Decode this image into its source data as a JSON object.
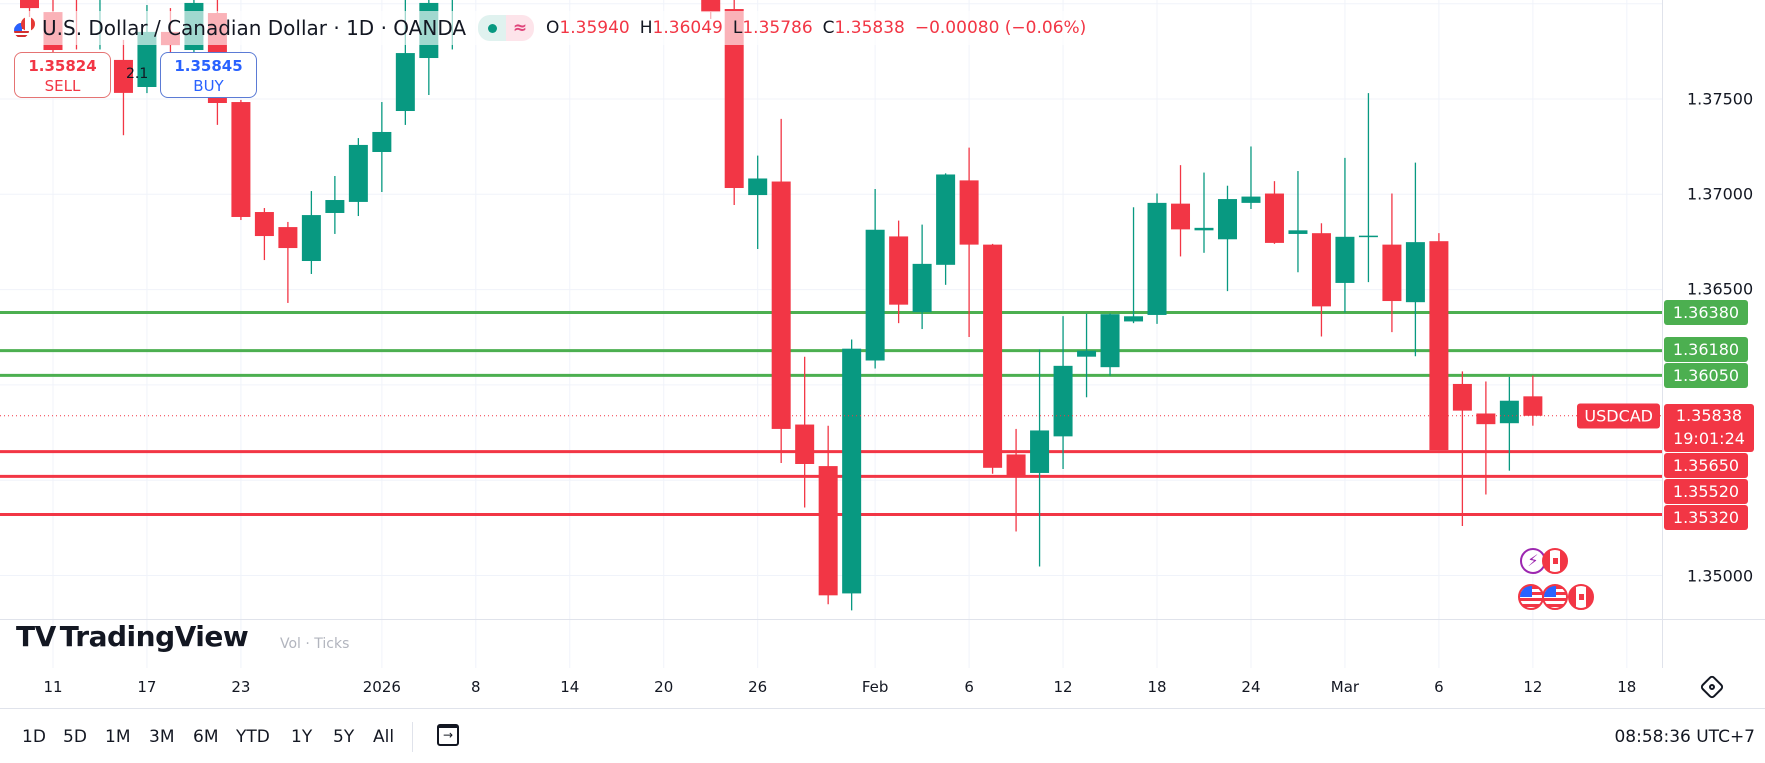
{
  "header": {
    "title": "U.S. Dollar / Canadian Dollar · 1D · OANDA",
    "market_status_icon": "green-dot",
    "indicator_icon": "approx-wave",
    "ohlc": {
      "o_label": "O",
      "o": "1.35940",
      "h_label": "H",
      "h": "1.36049",
      "l_label": "L",
      "l": "1.35786",
      "c_label": "C",
      "c": "1.35838",
      "change": "−0.00080 (−0.06%)"
    }
  },
  "trade": {
    "sell_price": "1.35824",
    "sell_label": "SELL",
    "spread": "2.1",
    "buy_price": "1.35845",
    "buy_label": "BUY"
  },
  "price_axis": {
    "labels": [
      "1.37500",
      "1.37000",
      "1.36500",
      "1.35000"
    ]
  },
  "levels": {
    "resistance": [
      "1.36380",
      "1.36180",
      "1.36050"
    ],
    "support": [
      "1.35650",
      "1.35520",
      "1.35320"
    ]
  },
  "current": {
    "symbol": "USDCAD",
    "price": "1.35838",
    "countdown": "19:01:24"
  },
  "colors": {
    "up": "#089981",
    "down": "#F23645",
    "resistance": "#4CAF50",
    "support": "#F23645"
  },
  "chart_data": {
    "type": "candlestick",
    "ylim": [
      1.3475,
      1.3805
    ],
    "grid": true,
    "candles": [
      [
        "2025-12-10",
        1.3818,
        1.3823,
        1.3793,
        1.37977
      ],
      [
        "2025-12-11",
        1.37956,
        1.38046,
        1.37731,
        1.37757
      ],
      [
        "2025-12-12",
        1.3815,
        1.3825,
        1.3776,
        1.3808
      ],
      [
        "2025-12-15",
        1.3808,
        1.3822,
        1.3776,
        1.3815
      ],
      [
        "2025-12-16",
        1.37705,
        1.3781,
        1.3731,
        1.37532
      ],
      [
        "2025-12-17",
        1.37563,
        1.37993,
        1.37531,
        1.37852
      ],
      [
        "2025-12-18",
        1.37852,
        1.37977,
        1.37741,
        1.37783
      ],
      [
        "2025-12-19",
        1.37757,
        1.38072,
        1.37731,
        1.38004
      ],
      [
        "2025-12-22",
        1.37951,
        1.38046,
        1.37364,
        1.37479
      ],
      [
        "2025-12-23",
        1.37484,
        1.37495,
        1.36865,
        1.36881
      ],
      [
        "2025-12-24",
        1.36907,
        1.36928,
        1.36655,
        1.36781
      ],
      [
        "2025-12-26",
        1.36828,
        1.36855,
        1.3643,
        1.36718
      ],
      [
        "2025-12-29",
        1.3665,
        1.37017,
        1.36582,
        1.36891
      ],
      [
        "2025-12-30",
        1.36902,
        1.37096,
        1.36792,
        1.3697
      ],
      [
        "2025-12-31",
        1.3696,
        1.37295,
        1.36886,
        1.37259
      ],
      [
        "2026-01-02",
        1.37222,
        1.37484,
        1.37012,
        1.37327
      ],
      [
        "2026-01-05",
        1.37437,
        1.3802,
        1.37364,
        1.37741
      ],
      [
        "2026-01-06",
        1.37715,
        1.3807,
        1.37521,
        1.38004
      ],
      [
        "2026-01-07",
        1.3812,
        1.3835,
        1.3776,
        1.3825
      ],
      [
        "2026-01-22",
        1.3815,
        1.3825,
        1.3792,
        1.37956
      ],
      [
        "2026-01-23",
        1.37972,
        1.3802,
        1.36944,
        1.37033
      ],
      [
        "2026-01-26",
        1.36996,
        1.37203,
        1.36713,
        1.37083
      ],
      [
        "2026-01-27",
        1.37067,
        1.37396,
        1.3559,
        1.35769
      ],
      [
        "2026-01-28",
        1.35792,
        1.36148,
        1.35357,
        1.35585
      ],
      [
        "2026-01-29",
        1.35574,
        1.35786,
        1.34849,
        1.34896
      ],
      [
        "2026-01-30",
        1.34906,
        1.36238,
        1.34817,
        1.3619
      ],
      [
        "2026-02-02",
        1.36128,
        1.37028,
        1.36086,
        1.36814
      ],
      [
        "2026-02-03",
        1.36779,
        1.36862,
        1.36324,
        1.36421
      ],
      [
        "2026-02-04",
        1.36382,
        1.36841,
        1.36293,
        1.36635
      ],
      [
        "2026-02-05",
        1.3663,
        1.3711,
        1.36525,
        1.37104
      ],
      [
        "2026-02-06",
        1.37073,
        1.37245,
        1.36251,
        1.36736
      ],
      [
        "2026-02-09",
        1.36736,
        1.3674,
        1.35534,
        1.35565
      ],
      [
        "2026-02-10",
        1.35635,
        1.35769,
        1.35231,
        1.35527
      ],
      [
        "2026-02-11",
        1.35538,
        1.36186,
        1.35047,
        1.35761
      ],
      [
        "2026-02-12",
        1.3573,
        1.36361,
        1.35559,
        1.361
      ],
      [
        "2026-02-13",
        1.36148,
        1.36374,
        1.35935,
        1.36179
      ],
      [
        "2026-02-16",
        1.36093,
        1.36375,
        1.36049,
        1.36371
      ],
      [
        "2026-02-17",
        1.36333,
        1.36932,
        1.36324,
        1.3636
      ],
      [
        "2026-02-18",
        1.36367,
        1.37004,
        1.3632,
        1.36955
      ],
      [
        "2026-02-19",
        1.36951,
        1.37153,
        1.36674,
        1.36816
      ],
      [
        "2026-02-20",
        1.36811,
        1.37114,
        1.36693,
        1.36824
      ],
      [
        "2026-02-23",
        1.36764,
        1.37045,
        1.36492,
        1.36975
      ],
      [
        "2026-02-24",
        1.36955,
        1.37251,
        1.36923,
        1.36988
      ],
      [
        "2026-02-25",
        1.37004,
        1.37069,
        1.3674,
        1.36745
      ],
      [
        "2026-02-26",
        1.36792,
        1.37122,
        1.36591,
        1.36811
      ],
      [
        "2026-02-27",
        1.36796,
        1.36848,
        1.36254,
        1.36412
      ],
      [
        "2026-03-02",
        1.36535,
        1.37191,
        1.3638,
        1.36777
      ],
      [
        "2026-03-03",
        1.36783,
        1.37531,
        1.36539,
        1.36783
      ],
      [
        "2026-03-04",
        1.36736,
        1.37004,
        1.36277,
        1.3644
      ],
      [
        "2026-03-05",
        1.36434,
        1.37166,
        1.3615,
        1.36749
      ],
      [
        "2026-03-06",
        1.36754,
        1.36796,
        1.35658,
        1.35658
      ],
      [
        "2026-03-09",
        1.36005,
        1.36071,
        1.3526,
        1.35865
      ],
      [
        "2026-03-10",
        1.3585,
        1.36018,
        1.35425,
        1.35794
      ],
      [
        "2026-03-11",
        1.35799,
        1.36042,
        1.3555,
        1.35917
      ],
      [
        "2026-03-12",
        1.3594,
        1.36049,
        1.35786,
        1.35838
      ]
    ],
    "x_ticks": [
      {
        "label": "11",
        "date": "2025-12-11"
      },
      {
        "label": "17",
        "date": "2025-12-17"
      },
      {
        "label": "23",
        "date": "2025-12-23"
      },
      {
        "label": "2026",
        "date": "2026-01-02"
      },
      {
        "label": "8",
        "date": "2026-01-08"
      },
      {
        "label": "14",
        "date": "2026-01-14"
      },
      {
        "label": "20",
        "date": "2026-01-20"
      },
      {
        "label": "26",
        "date": "2026-01-26"
      },
      {
        "label": "Feb",
        "date": "2026-02-02"
      },
      {
        "label": "6",
        "date": "2026-02-06"
      },
      {
        "label": "12",
        "date": "2026-02-12"
      },
      {
        "label": "18",
        "date": "2026-02-18"
      },
      {
        "label": "24",
        "date": "2026-02-24"
      },
      {
        "label": "Mar",
        "date": "2026-03-02"
      },
      {
        "label": "6",
        "date": "2026-03-06"
      },
      {
        "label": "12",
        "date": "2026-03-12"
      },
      {
        "label": "18",
        "date": "2026-03-18"
      }
    ],
    "y_ticks": [
      1.38,
      1.375,
      1.37,
      1.365,
      1.36,
      1.355,
      1.35
    ]
  },
  "watermark": {
    "logo_text": "TradingView",
    "volume_legend": "Vol · Ticks"
  },
  "events": {
    "row1": [
      "lightning-icon",
      "canada-flag-icon"
    ],
    "row2": [
      "us-flag-icon",
      "us-flag-icon",
      "canada-flag-icon"
    ]
  },
  "toolbar": {
    "ranges": [
      "1D",
      "5D",
      "1M",
      "3M",
      "6M",
      "YTD",
      "1Y",
      "5Y",
      "All"
    ],
    "date_range_icon": "calendar-arrow-icon",
    "clock": "08:58:36 UTC+7"
  }
}
